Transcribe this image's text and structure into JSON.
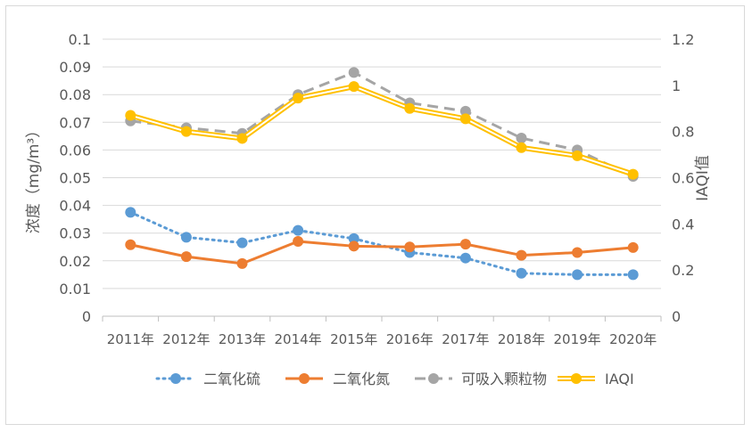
{
  "chart_data": {
    "type": "line",
    "categories": [
      "2011年",
      "2012年",
      "2013年",
      "2014年",
      "2015年",
      "2016年",
      "2017年",
      "2018年",
      "2019年",
      "2020年"
    ],
    "y_left": {
      "label": "浓度（mg/m³）",
      "range": [
        0,
        0.1
      ],
      "ticks": [
        "0",
        "0.01",
        "0.02",
        "0.03",
        "0.04",
        "0.05",
        "0.06",
        "0.07",
        "0.08",
        "0.09",
        "0.1"
      ]
    },
    "y_right": {
      "label": "IAQI值",
      "range": [
        0,
        1.2
      ],
      "ticks": [
        "0",
        "0.2",
        "0.4",
        "0.6",
        "0.8",
        "1",
        "1.2"
      ]
    },
    "grid": true,
    "legend_position": "bottom",
    "series": [
      {
        "name": "二氧化硫",
        "axis": "left",
        "style": "dotted",
        "color": "#5b9bd5",
        "values": [
          0.0375,
          0.0285,
          0.0265,
          0.031,
          0.028,
          0.023,
          0.021,
          0.0155,
          0.015,
          0.015
        ]
      },
      {
        "name": "二氧化氮",
        "axis": "left",
        "style": "solid",
        "color": "#ed7d31",
        "values": [
          0.0258,
          0.0215,
          0.019,
          0.027,
          0.0253,
          0.025,
          0.026,
          0.022,
          0.023,
          0.0248
        ]
      },
      {
        "name": "可吸入颗粒物",
        "axis": "left",
        "style": "dashed",
        "color": "#a5a5a5",
        "values": [
          0.0705,
          0.068,
          0.066,
          0.08,
          0.088,
          0.077,
          0.074,
          0.0643,
          0.06,
          0.0505
        ]
      },
      {
        "name": "IAQI",
        "axis": "right",
        "style": "double",
        "color": "#ffc000",
        "values": [
          0.87,
          0.8,
          0.77,
          0.945,
          0.995,
          0.9,
          0.855,
          0.73,
          0.695,
          0.615
        ]
      }
    ]
  }
}
